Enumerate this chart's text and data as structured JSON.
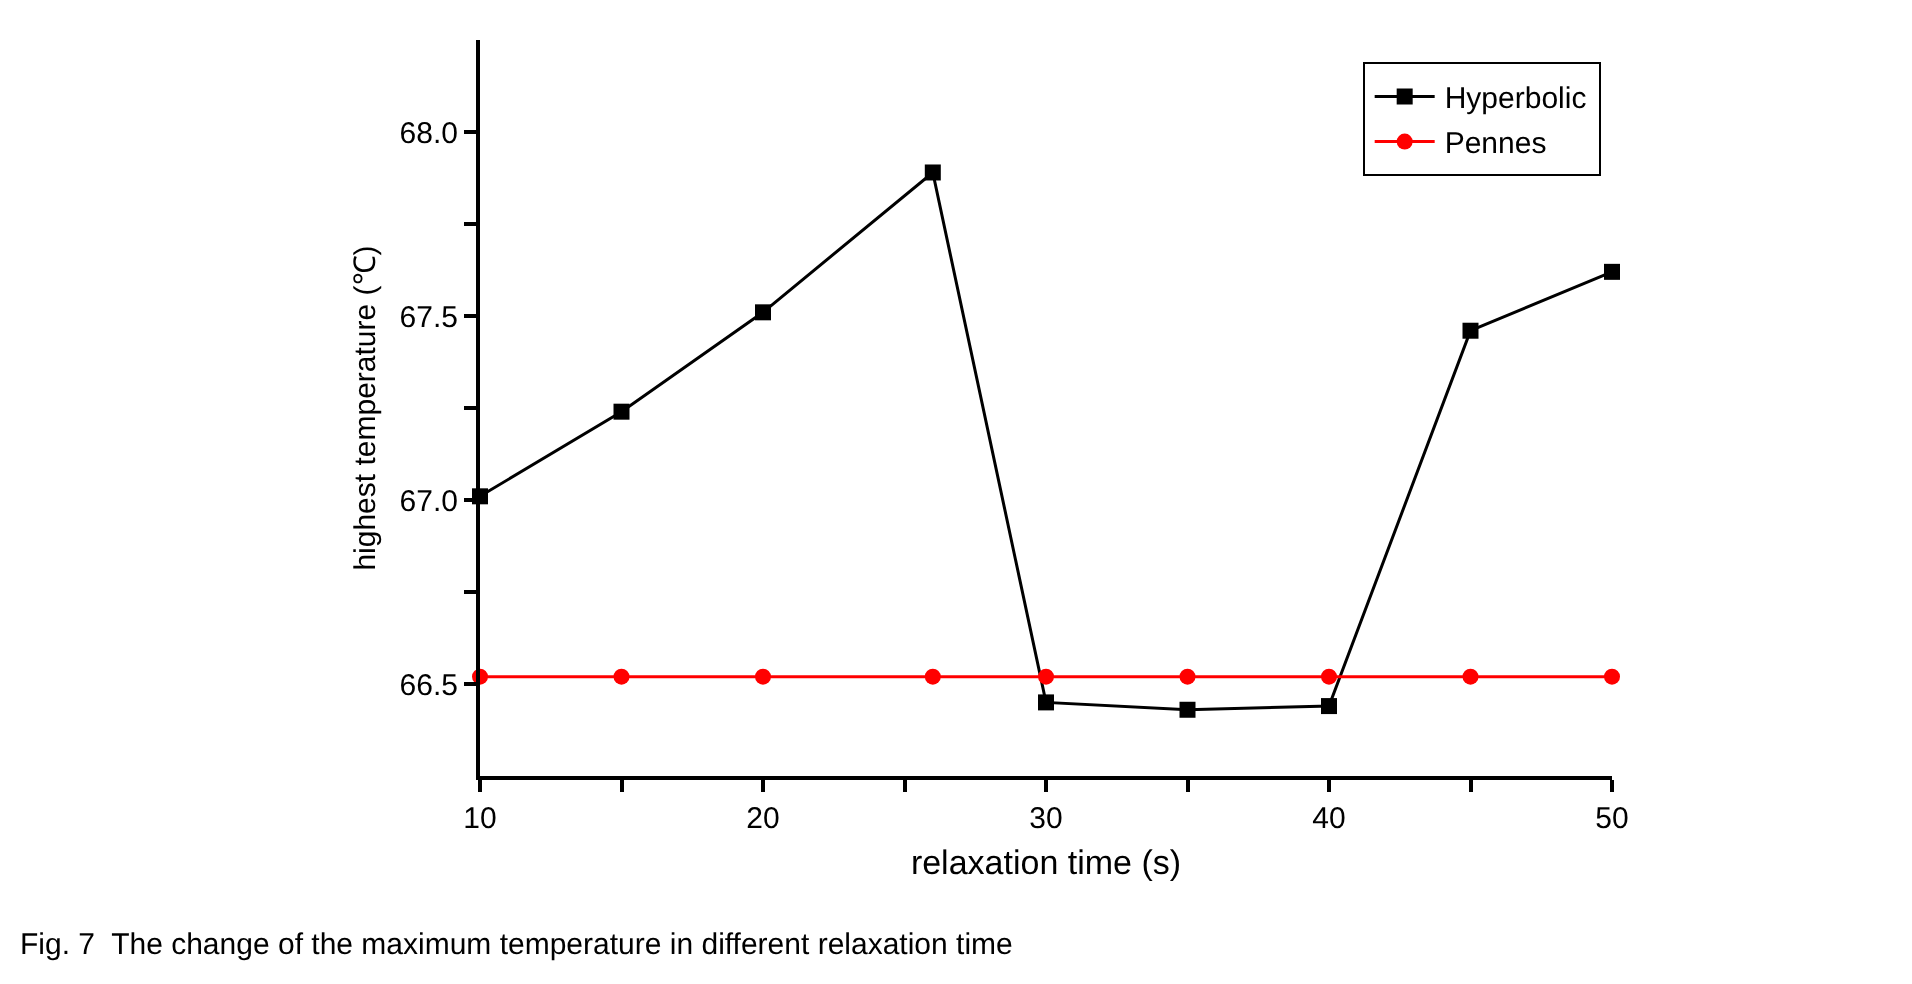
{
  "chart_data": {
    "type": "line",
    "xlabel": "relaxation time (s)",
    "ylabel": "highest temperature (℃)",
    "x": [
      10,
      15,
      20,
      26,
      30,
      35,
      40,
      45,
      50
    ],
    "series": [
      {
        "name": "Hyperbolic",
        "color": "#000000",
        "marker": "square",
        "values": [
          67.01,
          67.24,
          67.51,
          67.89,
          66.45,
          66.43,
          66.44,
          67.46,
          67.62
        ]
      },
      {
        "name": "Pennes",
        "color": "#ff0000",
        "marker": "circle",
        "values": [
          66.52,
          66.52,
          66.52,
          66.52,
          66.52,
          66.52,
          66.52,
          66.52,
          66.52
        ]
      }
    ],
    "xlim": [
      10,
      50
    ],
    "xticks": [
      10,
      {
        "value": 15,
        "label": null
      },
      20,
      {
        "value": 25,
        "label": null
      },
      30,
      {
        "value": 35,
        "label": null
      },
      40,
      {
        "value": 45,
        "label": null
      },
      50
    ],
    "ylim": [
      66.25,
      68.25
    ],
    "yticks": [
      {
        "value": 66.5,
        "label": "66.5"
      },
      {
        "value": 66.75,
        "label": null
      },
      {
        "value": 67,
        "label": "67.0"
      },
      {
        "value": 67.25,
        "label": null
      },
      {
        "value": 67.5,
        "label": "67.5"
      },
      {
        "value": 67.75,
        "label": null
      },
      {
        "value": 68,
        "label": "68.0"
      }
    ],
    "legend": "top right",
    "line_style": "solid",
    "annotations": [
      "Fig. 7  The change of the maximum temperature in different relaxation time"
    ]
  }
}
